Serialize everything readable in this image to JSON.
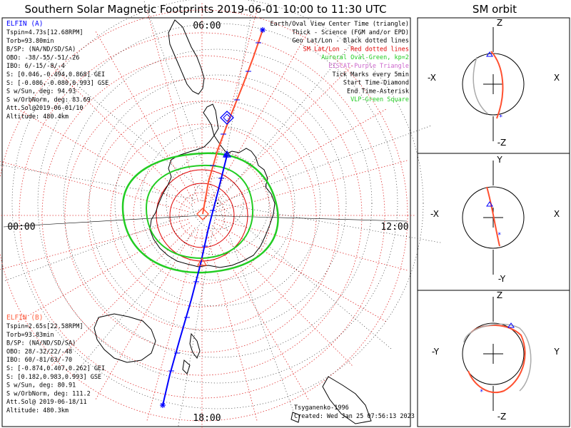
{
  "title": "Southern Solar Magnetic Footprints 2019-06-01 10:00 to 11:30 UTC",
  "orbit_panel_title": "SM orbit",
  "map": {
    "time_labels": {
      "top": "06:00",
      "left": "00:00",
      "right": "12:00",
      "bottom": "18:00"
    },
    "legend": [
      {
        "text": "Earth/Oval View Center Time (triangle)",
        "color": "#000000"
      },
      {
        "text": "Thick - Science (FGM and/or EPD)",
        "color": "#000000"
      },
      {
        "text": "Geo Lat/Lon - Black dotted lines",
        "color": "#000000"
      },
      {
        "text": "SM Lat/Lon - Red dotted lines",
        "color": "#e00000"
      },
      {
        "text": "Auroral Oval-Green, kp=2",
        "color": "#22cc22"
      },
      {
        "text": "EISCAT-Purple Triangle",
        "color": "#cc66cc"
      },
      {
        "text": "Tick Marks every 5min",
        "color": "#000000"
      },
      {
        "text": "Start Time-Diamond",
        "color": "#000000"
      },
      {
        "text": "End Time-Asterisk",
        "color": "#000000"
      },
      {
        "text": "VLP-Green Square",
        "color": "#22cc22"
      }
    ],
    "elfin_a": {
      "name": "ELFIN (A)",
      "color": "#0000ff",
      "lines": [
        "Tspin=4.73s[12.68RPM]",
        "Torb=93.80min",
        "B/SP: (NA/ND/SD/SA)",
        "OBO: -38/-55/-51/-26",
        "IBO: 6/-15/-8/-4",
        "S: [0.046,-0.494,0.868] GEI",
        "S: [-0.086,-0.080,0.993] GSE",
        "S w/Sun, deg: 94.93",
        "S w/OrbNorm, deg: 83.69",
        "Att.Sol@2019-06-01/10",
        "Altitude: 480.4km"
      ]
    },
    "elfin_b": {
      "name": "ELFIN (B)",
      "color": "#ff6040",
      "lines": [
        "Tspin=2.65s[22.58RPM]",
        "Torb=93.83min",
        "B/SP: (NA/ND/SD/SA)",
        "OBO: 28/-32/22/-48",
        "IBO: 60/-81/63/-70",
        "S: [-0.874,0.407,0.262] GEI",
        "S: [0.182,0.983,0.993] GSE",
        "S w/Sun, deg: 80.91",
        "S w/OrbNorm, deg: 111.2",
        "Att.Sol@ 2019-06-18/11",
        "Altitude: 480.3km"
      ]
    },
    "credits": {
      "author": "Tsyganenko-1996",
      "created": "Created: Wed Jan 25 07:56:13 2023"
    }
  },
  "orbit_panels": [
    {
      "top": "Z",
      "bottom": "-Z",
      "left": "-X",
      "right": "X"
    },
    {
      "top": "Y",
      "bottom": "-Y",
      "left": "-X",
      "right": "X"
    },
    {
      "top": "Z",
      "bottom": "-Z",
      "left": "-Y",
      "right": "Y"
    }
  ]
}
